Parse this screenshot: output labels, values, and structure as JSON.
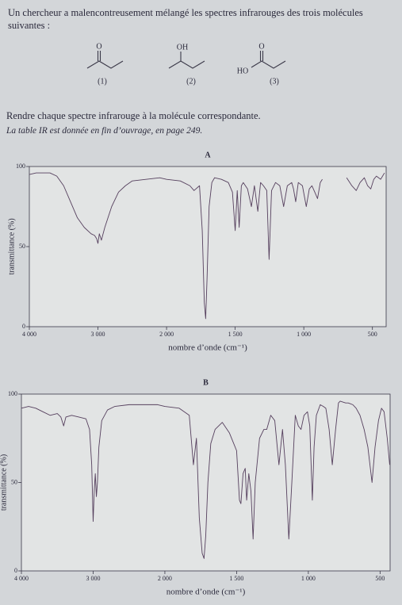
{
  "text": {
    "intro": "Un chercheur a malencontreusement mélangé les spectres infrarouges des trois molécules suivantes :",
    "task": "Rendre chaque spectre infrarouge à la molécule correspondante.",
    "note": "La table IR est donnée en fin d’ouvrage, en page 249."
  },
  "molecules": [
    {
      "label": "(1)",
      "atom": "O"
    },
    {
      "label": "(2)",
      "atom": "OH"
    },
    {
      "label": "(3)",
      "atom": "O",
      "group": "HO"
    }
  ],
  "chart_data": [
    {
      "type": "line",
      "title": "A",
      "x_label": "nombre d’onde (cm⁻¹)",
      "y_label": "transmittance (%)",
      "color": "#56405e",
      "xlim": [
        4000,
        400
      ],
      "ylim": [
        0,
        100
      ],
      "xticks": [
        {
          "value": 4000,
          "label": "4 000"
        },
        {
          "value": 3000,
          "label": "3 000"
        },
        {
          "value": 2000,
          "label": "2 000"
        },
        {
          "value": 1500,
          "label": "1 500"
        },
        {
          "value": 1000,
          "label": "1 000"
        },
        500
      ],
      "yticks": [
        0,
        50,
        100
      ],
      "x": [
        4000,
        3900,
        3800,
        3700,
        3600,
        3500,
        3400,
        3300,
        3200,
        3100,
        3050,
        3020,
        3000,
        2980,
        2950,
        2900,
        2800,
        2700,
        2600,
        2500,
        2300,
        2100,
        2000,
        1900,
        1830,
        1800,
        1760,
        1740,
        1725,
        1715,
        1705,
        1690,
        1670,
        1650,
        1600,
        1550,
        1520,
        1500,
        1485,
        1471,
        1455,
        1441,
        1410,
        1382,
        1360,
        1335,
        1315,
        1294,
        1270,
        1253,
        1235,
        1206,
        1175,
        1147,
        1120,
        1088,
        1075,
        1059,
        1040,
        1010,
        982,
        960,
        941,
        920,
        900,
        880,
        865,
        820,
        688,
        650,
        618,
        590,
        559,
        535,
        512,
        490,
        471,
        440,
        412
      ],
      "values": [
        95,
        96,
        96,
        96,
        94,
        88,
        78,
        68,
        62,
        58,
        57,
        55,
        52,
        58,
        54,
        62,
        75,
        84,
        88,
        91,
        92,
        93,
        92,
        91,
        88,
        85,
        88,
        60,
        15,
        5,
        30,
        75,
        90,
        93,
        92,
        90,
        84,
        60,
        85,
        62,
        88,
        90,
        86,
        75,
        88,
        72,
        90,
        88,
        85,
        42,
        85,
        90,
        88,
        75,
        88,
        90,
        86,
        78,
        90,
        88,
        75,
        86,
        88,
        84,
        80,
        90,
        92,
        null,
        93,
        88,
        85,
        90,
        93,
        88,
        86,
        92,
        94,
        92,
        96
      ]
    },
    {
      "type": "line",
      "title": "B",
      "x_label": "nombre d’onde (cm⁻¹)",
      "y_label": "transmittance (%)",
      "color": "#56405e",
      "xlim": [
        4000,
        430
      ],
      "ylim": [
        0,
        100
      ],
      "xticks": [
        {
          "value": 4000,
          "label": "4 000"
        },
        {
          "value": 3000,
          "label": "3 000"
        },
        {
          "value": 2000,
          "label": "2 000"
        },
        {
          "value": 1500,
          "label": "1 500"
        },
        {
          "value": 1000,
          "label": "1 000"
        },
        500
      ],
      "yticks": [
        0,
        50,
        100
      ],
      "x": [
        4000,
        3900,
        3800,
        3700,
        3600,
        3500,
        3450,
        3411,
        3380,
        3300,
        3200,
        3100,
        3050,
        3020,
        3000,
        2985,
        2970,
        2955,
        2940,
        2920,
        2880,
        2800,
        2700,
        2500,
        2300,
        2100,
        2000,
        1900,
        1830,
        1801,
        1780,
        1760,
        1740,
        1727,
        1715,
        1700,
        1680,
        1650,
        1600,
        1550,
        1520,
        1500,
        1480,
        1470,
        1455,
        1440,
        1430,
        1415,
        1400,
        1385,
        1370,
        1340,
        1310,
        1290,
        1262,
        1234,
        1205,
        1180,
        1160,
        1136,
        1115,
        1091,
        1070,
        1051,
        1030,
        1006,
        990,
        972,
        960,
        944,
        917,
        895,
        878,
        855,
        833,
        810,
        790,
        778,
        740,
        722,
        690,
        667,
        640,
        611,
        585,
        556,
        535,
        511,
        490,
        472,
        450,
        433
      ],
      "values": [
        92,
        93,
        92,
        90,
        88,
        89,
        87,
        82,
        87,
        88,
        87,
        86,
        80,
        60,
        28,
        45,
        55,
        42,
        50,
        70,
        85,
        91,
        93,
        94,
        94,
        94,
        93,
        92,
        88,
        60,
        75,
        30,
        10,
        7,
        20,
        50,
        72,
        80,
        84,
        78,
        72,
        68,
        40,
        38,
        55,
        58,
        40,
        55,
        45,
        18,
        50,
        75,
        80,
        80,
        88,
        85,
        60,
        80,
        60,
        18,
        50,
        88,
        82,
        80,
        88,
        90,
        82,
        40,
        70,
        88,
        94,
        93,
        92,
        80,
        60,
        80,
        95,
        96,
        95,
        95,
        94,
        92,
        88,
        80,
        70,
        50,
        70,
        85,
        92,
        90,
        75,
        60
      ]
    }
  ]
}
